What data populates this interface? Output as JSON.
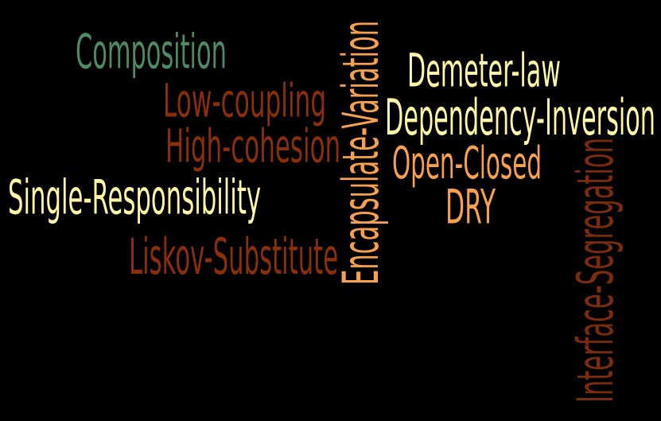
{
  "colors": {
    "background": "#000000",
    "green": "#4f8a62",
    "rust": "#8a2f0a",
    "cream": "#fff7a6",
    "orange": "#f7a14e",
    "brown": "#7b2c0c"
  },
  "cloud": {
    "words": [
      {
        "id": "composition",
        "text": "Composition",
        "color": "#4f8a62",
        "orientation": "horizontal"
      },
      {
        "id": "low-coupling",
        "text": "Low-coupling",
        "color": "#8a2f0a",
        "orientation": "horizontal"
      },
      {
        "id": "high-cohesion",
        "text": "High-cohesion",
        "color": "#8a2f0a",
        "orientation": "horizontal"
      },
      {
        "id": "single-responsibility",
        "text": "Single-Responsibility",
        "color": "#fff7a6",
        "orientation": "horizontal"
      },
      {
        "id": "liskov-substitute",
        "text": "Liskov-Substitute",
        "color": "#8a2f0a",
        "orientation": "horizontal"
      },
      {
        "id": "encapsulate-variation",
        "text": "Encapsulate-Variation",
        "color": "#f7a14e",
        "orientation": "vertical"
      },
      {
        "id": "demeter-law",
        "text": "Demeter-law",
        "color": "#fff7a6",
        "orientation": "horizontal"
      },
      {
        "id": "dependency-inversion",
        "text": "Dependency-Inversion",
        "color": "#fff7a6",
        "orientation": "horizontal"
      },
      {
        "id": "open-closed",
        "text": "Open-Closed",
        "color": "#f7a14e",
        "orientation": "horizontal"
      },
      {
        "id": "dry",
        "text": "DRY",
        "color": "#f7a14e",
        "orientation": "horizontal"
      },
      {
        "id": "interface-segregation",
        "text": "Interface-Segregation",
        "color": "#7b2c0c",
        "orientation": "vertical"
      }
    ]
  }
}
